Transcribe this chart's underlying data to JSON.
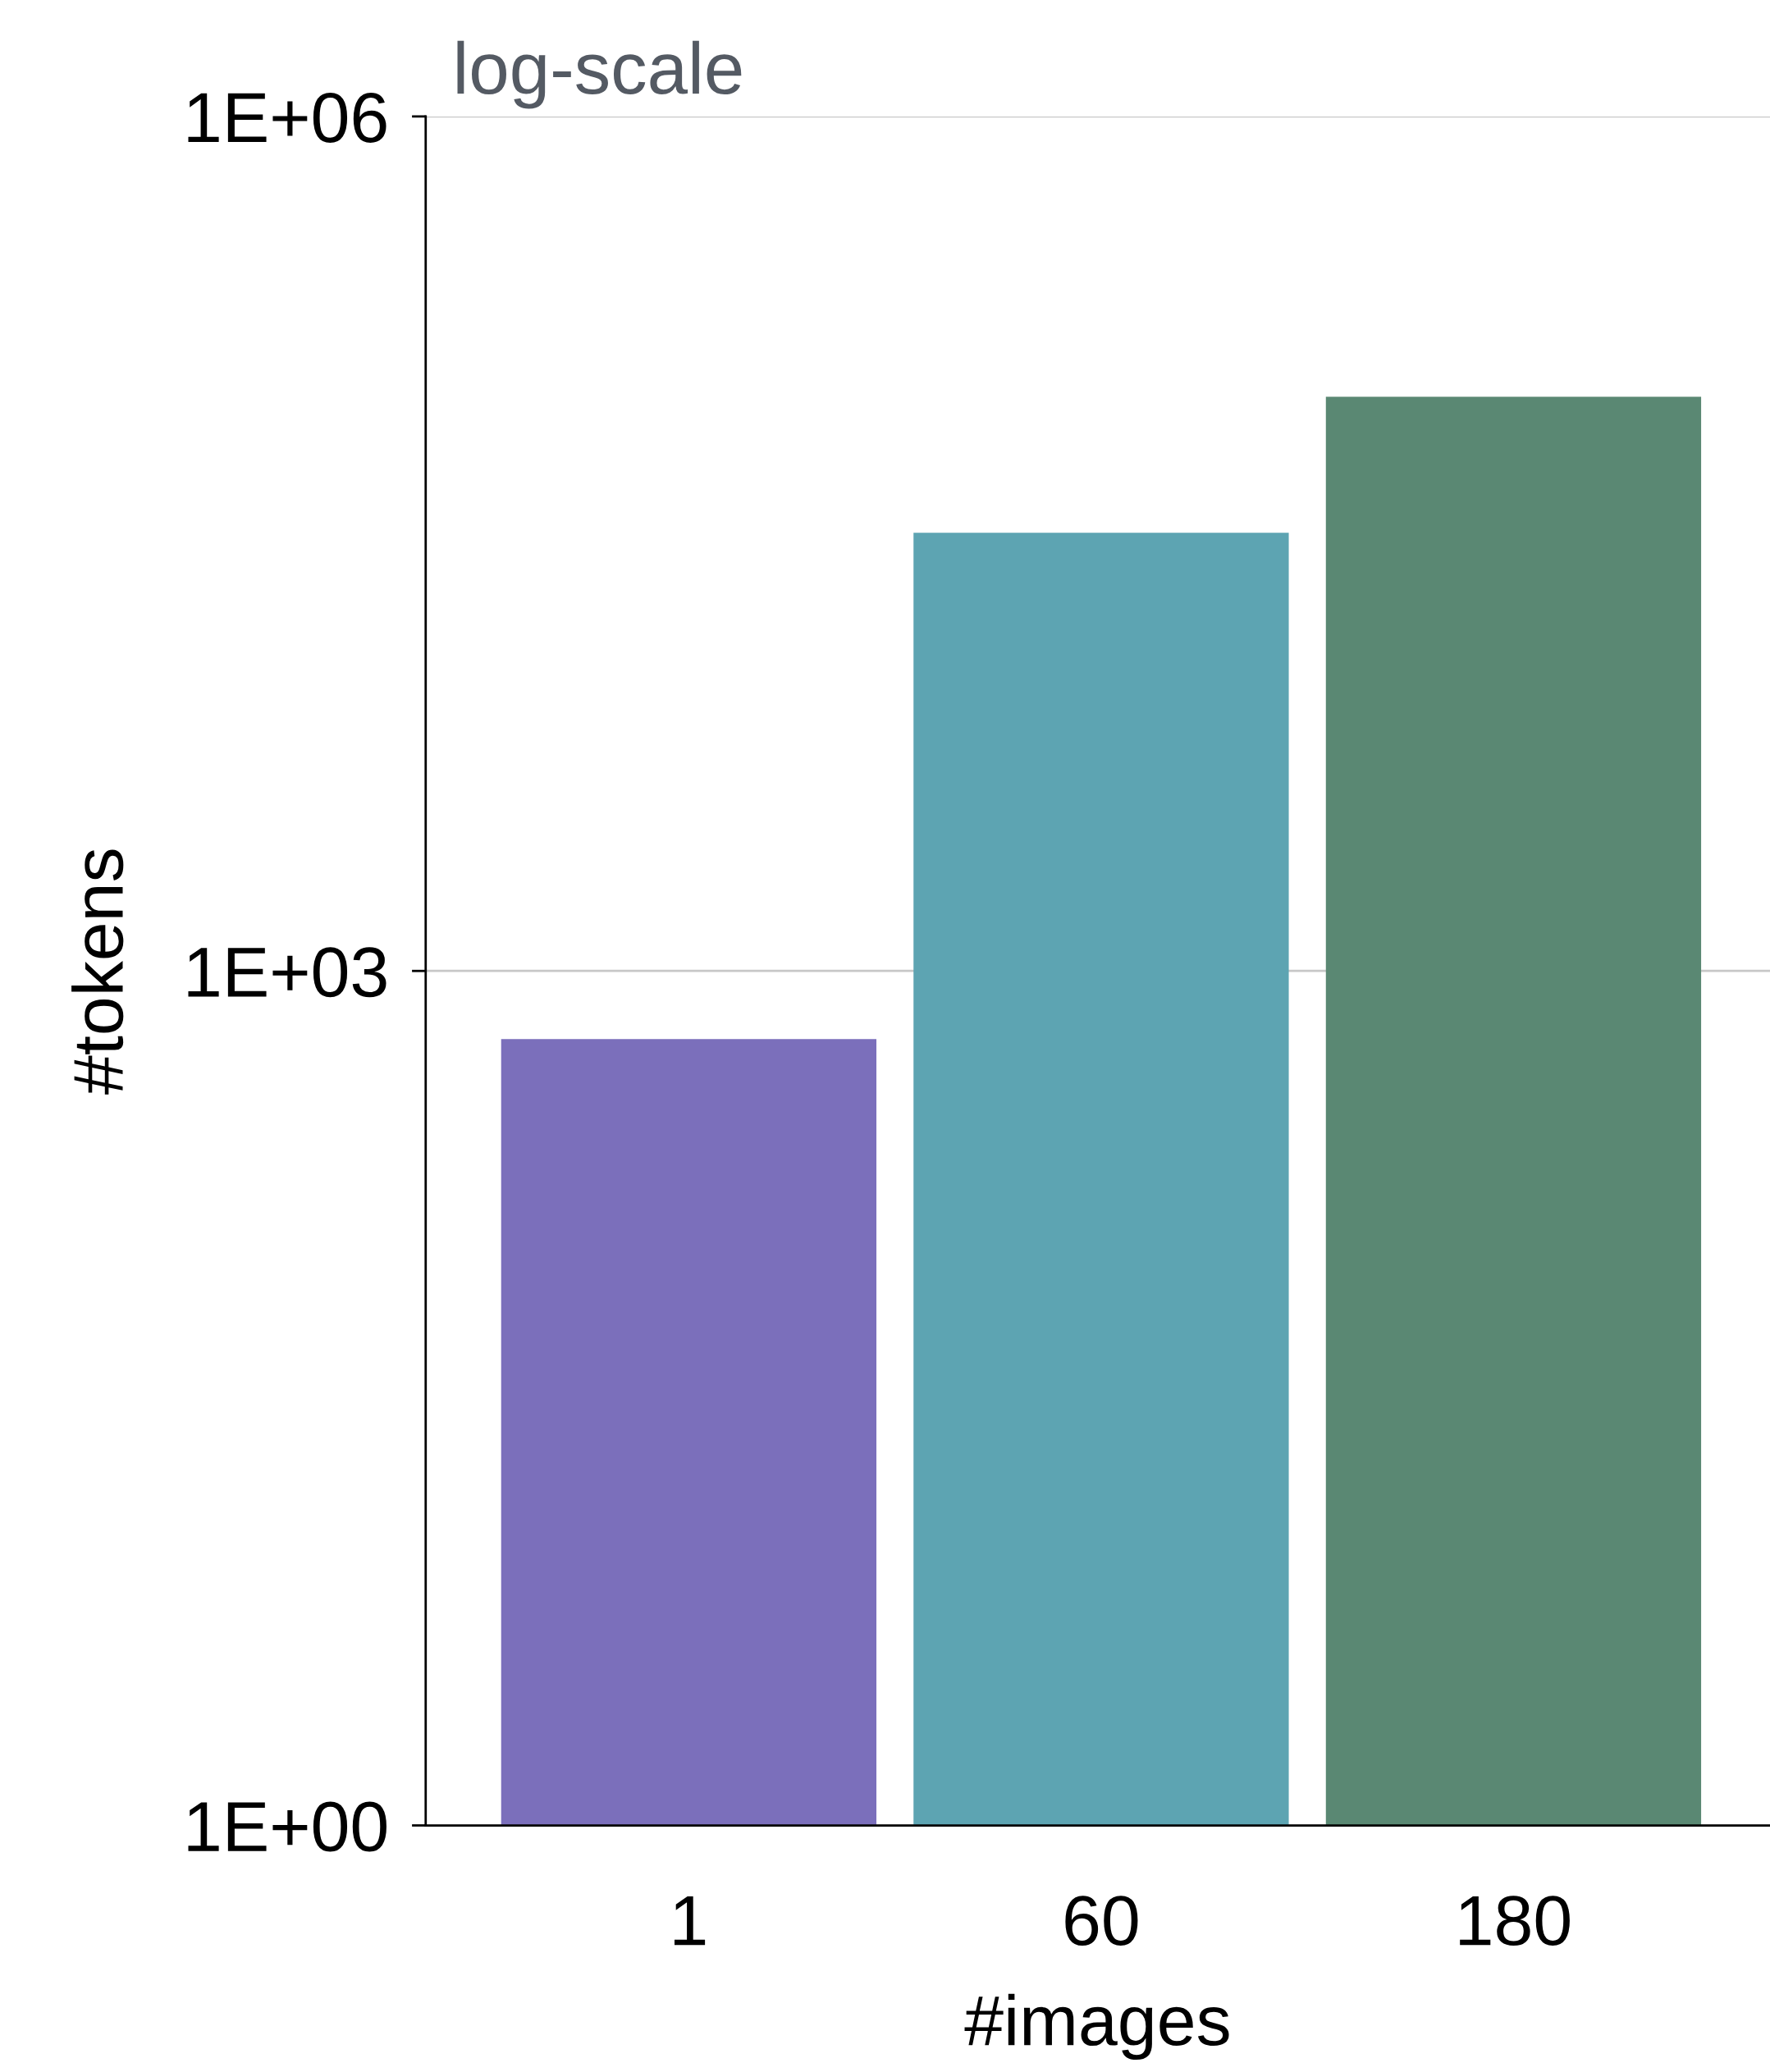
{
  "chart_data": {
    "type": "bar",
    "title": "log-scale",
    "xlabel": "#images",
    "ylabel": "#tokens",
    "categories": [
      "1",
      "60",
      "180"
    ],
    "values": [
      576,
      34560,
      103680
    ],
    "colors": [
      "#7b6fbb",
      "#5da4b2",
      "#5a8873"
    ],
    "log": "y",
    "ylim": [
      1,
      1000000
    ],
    "yticks": [
      {
        "value": 1,
        "label": "1E+00"
      },
      {
        "value": 1000,
        "label": "1E+03"
      },
      {
        "value": 1000000,
        "label": "1E+06"
      }
    ],
    "grid": "y",
    "legend": false
  }
}
